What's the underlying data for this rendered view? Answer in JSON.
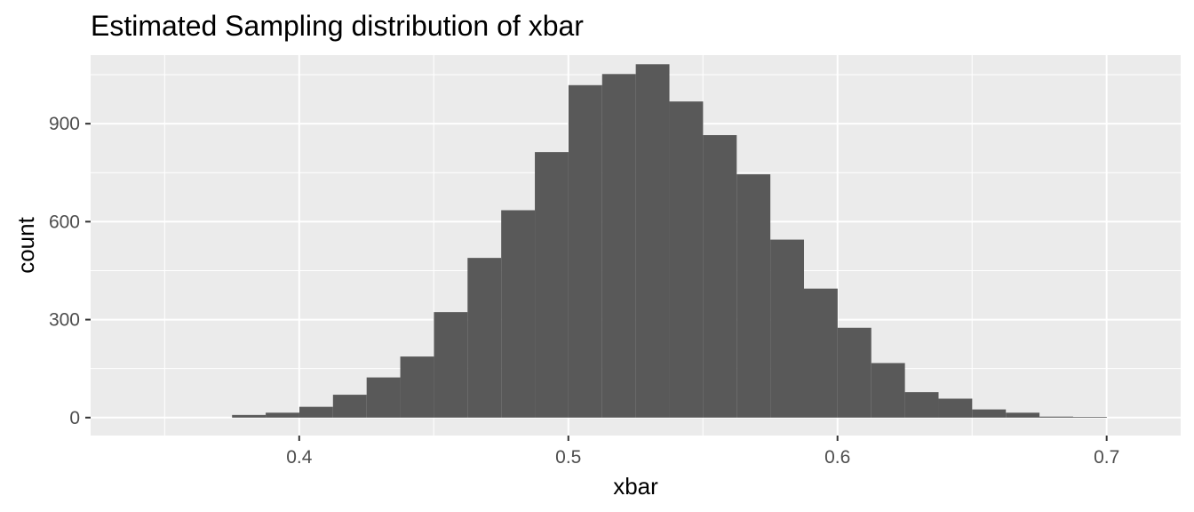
{
  "chart_data": {
    "type": "bar",
    "title": "Estimated Sampling distribution of xbar",
    "xlabel": "xbar",
    "ylabel": "count",
    "xlim": [
      0.3225,
      0.7275
    ],
    "ylim": [
      -55,
      1110
    ],
    "x_ticks": [
      0.4,
      0.5,
      0.6,
      0.7
    ],
    "x_tick_labels": [
      "0.4",
      "0.5",
      "0.6",
      "0.7"
    ],
    "y_ticks": [
      0,
      300,
      600,
      900
    ],
    "y_tick_labels": [
      "0",
      "300",
      "600",
      "900"
    ],
    "bin_width": 0.0125,
    "bin_centers": [
      0.3813,
      0.3938,
      0.4063,
      0.4188,
      0.4313,
      0.4438,
      0.4563,
      0.4688,
      0.4813,
      0.4938,
      0.5063,
      0.5188,
      0.5313,
      0.5438,
      0.5563,
      0.5688,
      0.5813,
      0.5938,
      0.6063,
      0.6188,
      0.6313,
      0.6438,
      0.6563,
      0.6688,
      0.6813,
      0.6938
    ],
    "values": [
      8,
      15,
      33,
      70,
      123,
      187,
      323,
      489,
      635,
      813,
      1018,
      1052,
      1082,
      968,
      865,
      745,
      545,
      395,
      275,
      167,
      78,
      58,
      25,
      15,
      3,
      2
    ],
    "grid": true,
    "colors": {
      "panel": "#ebebeb",
      "grid": "#ffffff",
      "bar": "#595959"
    }
  }
}
